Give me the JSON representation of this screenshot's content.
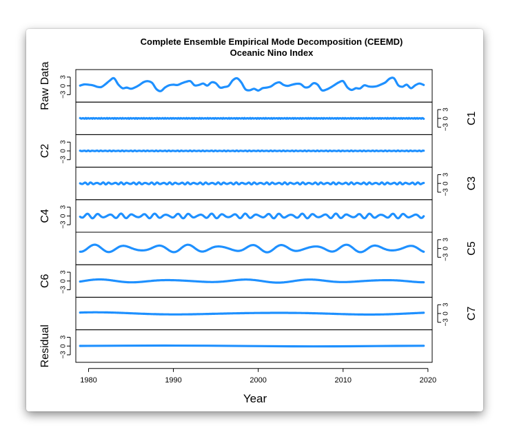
{
  "chart_data": {
    "type": "line",
    "title": "Complete Ensemble Empirical Mode Decomposition (CEEMD)",
    "subtitle": "Oceanic Nino Index",
    "xlabel": "Year",
    "xlim": [
      1978.5,
      2020.5
    ],
    "xticks": [
      1980,
      1990,
      2000,
      2010,
      2020
    ],
    "line_color": "#1e90ff",
    "panels": [
      {
        "name": "Raw Data",
        "axis_side": "left",
        "ylim": [
          -3,
          3
        ],
        "yticks": [
          -3,
          0,
          3
        ],
        "x": [
          1979.0,
          1979.5,
          1980.0,
          1980.5,
          1981.0,
          1981.5,
          1982.0,
          1982.5,
          1983.0,
          1983.5,
          1984.0,
          1984.5,
          1985.0,
          1985.5,
          1986.0,
          1986.5,
          1987.0,
          1987.5,
          1988.0,
          1988.5,
          1989.0,
          1989.5,
          1990.0,
          1990.5,
          1991.0,
          1991.5,
          1992.0,
          1992.5,
          1993.0,
          1993.5,
          1994.0,
          1994.5,
          1995.0,
          1995.5,
          1996.0,
          1996.5,
          1997.0,
          1997.5,
          1998.0,
          1998.5,
          1999.0,
          1999.5,
          2000.0,
          2000.5,
          2001.0,
          2001.5,
          2002.0,
          2002.5,
          2003.0,
          2003.5,
          2004.0,
          2004.5,
          2005.0,
          2005.5,
          2006.0,
          2006.5,
          2007.0,
          2007.5,
          2008.0,
          2008.5,
          2009.0,
          2009.5,
          2010.0,
          2010.5,
          2011.0,
          2011.5,
          2012.0,
          2012.5,
          2013.0,
          2013.5,
          2014.0,
          2014.5,
          2015.0,
          2015.5,
          2016.0,
          2016.5,
          2017.0,
          2017.5,
          2018.0,
          2018.5,
          2019.0,
          2019.5
        ],
        "y": [
          0.1,
          0.5,
          0.4,
          0.2,
          -0.3,
          -0.4,
          0.6,
          1.8,
          2.6,
          0.5,
          -0.8,
          -0.6,
          -1.0,
          -0.5,
          0.3,
          1.3,
          1.6,
          1.0,
          -1.1,
          -1.8,
          -0.6,
          0.2,
          0.4,
          0.3,
          0.9,
          1.4,
          1.6,
          0.2,
          0.3,
          0.8,
          0.1,
          1.2,
          0.9,
          -0.6,
          -0.4,
          0.0,
          1.9,
          2.6,
          1.2,
          -1.2,
          -1.5,
          -1.0,
          -1.6,
          -0.8,
          -0.6,
          -0.2,
          0.8,
          1.2,
          0.3,
          0.0,
          0.4,
          0.7,
          0.6,
          -0.5,
          -0.3,
          0.9,
          0.4,
          -1.5,
          -1.3,
          -0.6,
          0.3,
          1.2,
          1.6,
          -0.5,
          -1.4,
          -0.8,
          -0.9,
          0.2,
          -0.2,
          -0.3,
          -0.1,
          0.5,
          1.2,
          2.5,
          2.6,
          0.2,
          -0.3,
          0.4,
          -0.8,
          0.2,
          0.8,
          0.3
        ]
      },
      {
        "name": "C1",
        "axis_side": "right",
        "ylim": [
          -3,
          3
        ],
        "yticks": [
          -3,
          0,
          3
        ],
        "amplitude": 0.15,
        "cycles_per_year": 3.2
      },
      {
        "name": "C2",
        "axis_side": "left",
        "ylim": [
          -3,
          3
        ],
        "yticks": [
          -3,
          0,
          3
        ],
        "amplitude": 0.12,
        "cycles_per_year": 2.0
      },
      {
        "name": "C3",
        "axis_side": "right",
        "ylim": [
          -3,
          3
        ],
        "yticks": [
          -3,
          0,
          3
        ],
        "amplitude": 0.35,
        "cycles_per_year": 1.4
      },
      {
        "name": "C4",
        "axis_side": "left",
        "ylim": [
          -3,
          3
        ],
        "yticks": [
          -3,
          0,
          3
        ],
        "amplitude": 0.8,
        "cycles_per_year": 0.75
      },
      {
        "name": "C5",
        "axis_side": "right",
        "ylim": [
          -3,
          3
        ],
        "yticks": [
          -3,
          0,
          3
        ],
        "amplitude": 1.3,
        "cycles_per_year": 0.27
      },
      {
        "name": "C6",
        "axis_side": "left",
        "ylim": [
          -3,
          3
        ],
        "yticks": [
          -3,
          0,
          3
        ],
        "amplitude": 0.55,
        "cycles_per_year": 0.12
      },
      {
        "name": "C7",
        "axis_side": "right",
        "ylim": [
          -3,
          3
        ],
        "yticks": [
          -3,
          0,
          3
        ],
        "amplitude": 0.45,
        "cycles_per_year": 0.05
      },
      {
        "name": "Residual",
        "axis_side": "left",
        "ylim": [
          -3,
          3
        ],
        "yticks": [
          -3,
          0,
          3
        ],
        "x": [
          1979,
          1984,
          1989,
          1994,
          1999,
          2004,
          2009,
          2014,
          2019.5
        ],
        "y": [
          0.05,
          0.12,
          0.16,
          0.12,
          0.0,
          -0.1,
          -0.1,
          0.0,
          0.1
        ]
      }
    ]
  }
}
